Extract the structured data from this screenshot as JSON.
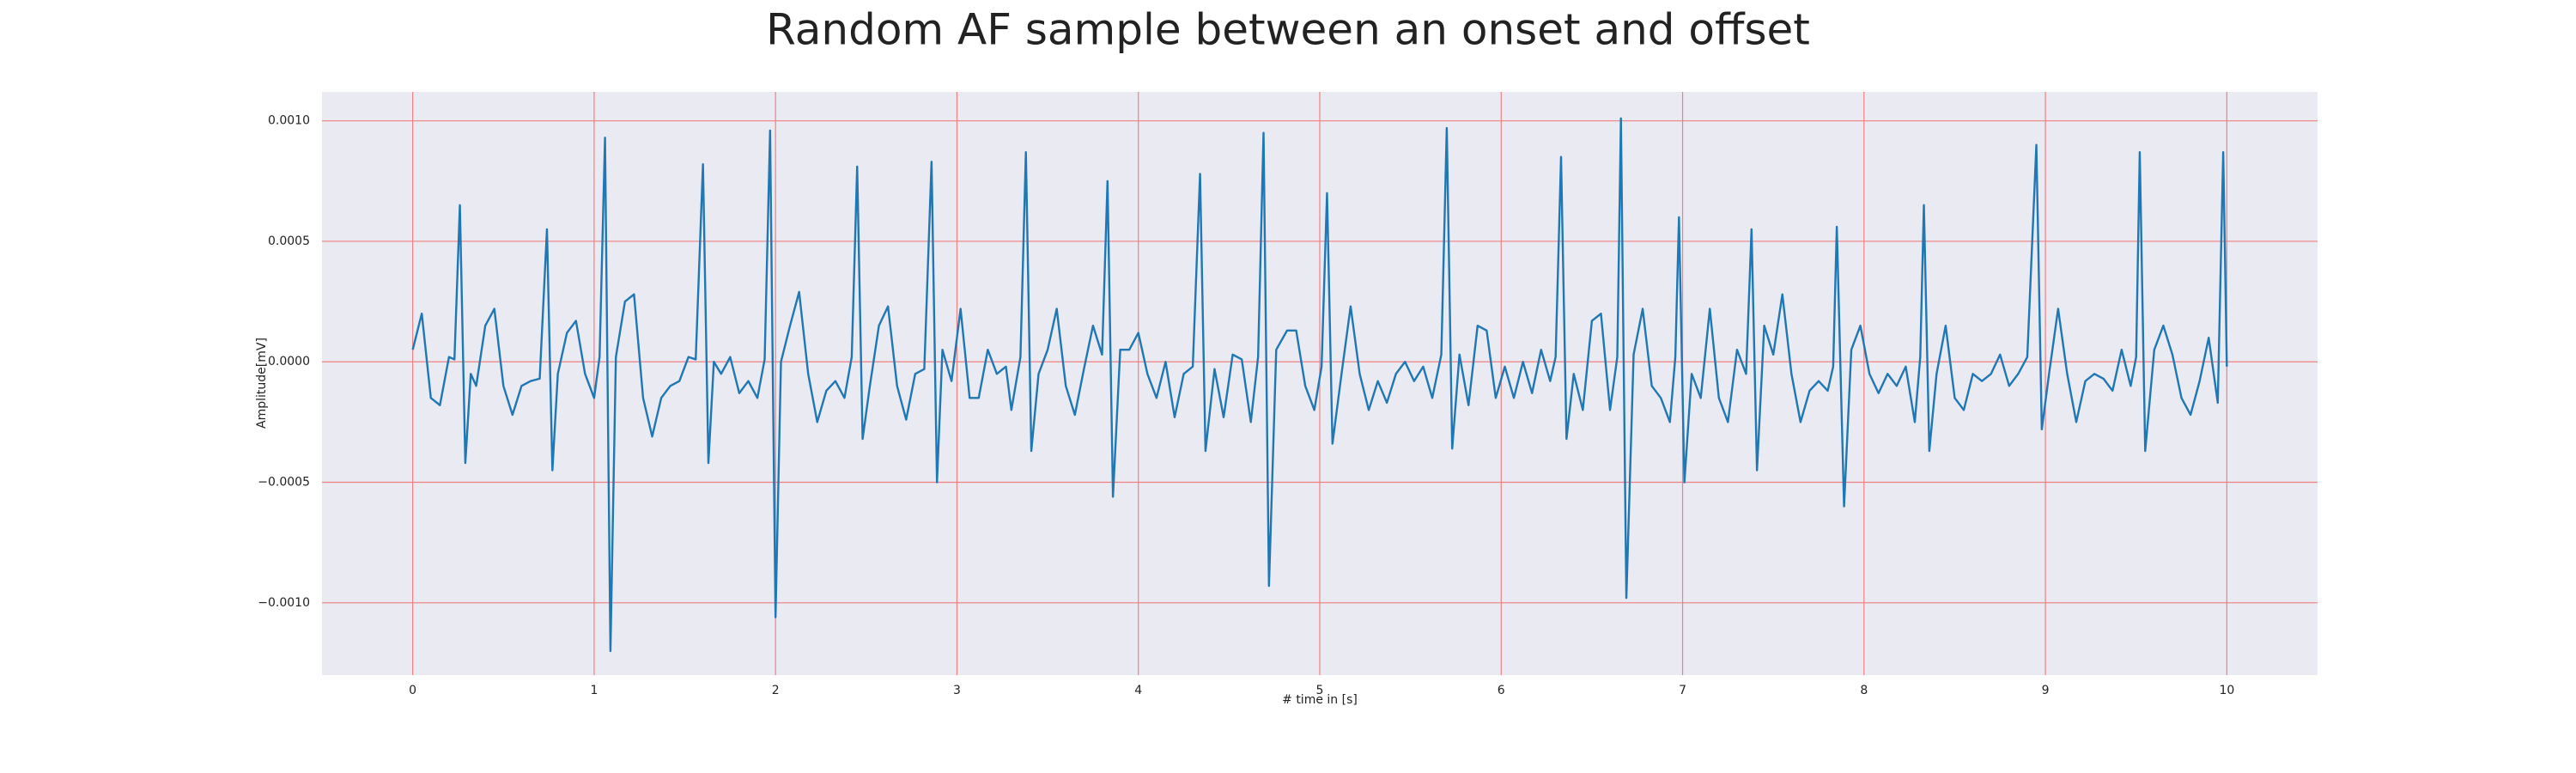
{
  "chart_data": {
    "type": "line",
    "title": "Random AF sample between an onset and offset",
    "x_label": "# time in [s]",
    "y_label": "Amplitude[mV]",
    "color": "#1f77b4",
    "grid": true,
    "x": [
      0,
      0.05,
      0.1,
      0.15,
      0.2,
      0.23,
      0.26,
      0.29,
      0.32,
      0.35,
      0.4,
      0.45,
      0.5,
      0.55,
      0.6,
      0.65,
      0.7,
      0.74,
      0.77,
      0.8,
      0.85,
      0.9,
      0.95,
      1.0,
      1.03,
      1.06,
      1.09,
      1.12,
      1.17,
      1.22,
      1.27,
      1.32,
      1.37,
      1.42,
      1.47,
      1.52,
      1.56,
      1.6,
      1.63,
      1.66,
      1.7,
      1.75,
      1.8,
      1.85,
      1.9,
      1.94,
      1.97,
      2.0,
      2.03,
      2.08,
      2.13,
      2.18,
      2.23,
      2.28,
      2.33,
      2.38,
      2.42,
      2.45,
      2.48,
      2.52,
      2.57,
      2.62,
      2.67,
      2.72,
      2.77,
      2.82,
      2.86,
      2.89,
      2.92,
      2.97,
      3.02,
      3.07,
      3.12,
      3.17,
      3.22,
      3.27,
      3.3,
      3.35,
      3.38,
      3.41,
      3.45,
      3.5,
      3.55,
      3.6,
      3.65,
      3.7,
      3.75,
      3.8,
      3.83,
      3.86,
      3.9,
      3.95,
      4.0,
      4.05,
      4.1,
      4.15,
      4.2,
      4.25,
      4.3,
      4.34,
      4.37,
      4.42,
      4.47,
      4.52,
      4.57,
      4.62,
      4.66,
      4.69,
      4.72,
      4.76,
      4.82,
      4.87,
      4.92,
      4.97,
      5.01,
      5.04,
      5.07,
      5.12,
      5.17,
      5.22,
      5.27,
      5.32,
      5.37,
      5.42,
      5.47,
      5.52,
      5.57,
      5.62,
      5.67,
      5.7,
      5.73,
      5.77,
      5.82,
      5.87,
      5.92,
      5.97,
      6.02,
      6.07,
      6.12,
      6.17,
      6.22,
      6.27,
      6.3,
      6.33,
      6.36,
      6.4,
      6.45,
      6.5,
      6.55,
      6.6,
      6.64,
      6.66,
      6.69,
      6.73,
      6.78,
      6.83,
      6.88,
      6.93,
      6.96,
      6.98,
      7.01,
      7.05,
      7.1,
      7.15,
      7.2,
      7.25,
      7.3,
      7.35,
      7.38,
      7.41,
      7.45,
      7.5,
      7.55,
      7.6,
      7.65,
      7.7,
      7.75,
      7.8,
      7.83,
      7.85,
      7.89,
      7.93,
      7.98,
      8.03,
      8.08,
      8.13,
      8.18,
      8.23,
      8.28,
      8.31,
      8.33,
      8.36,
      8.4,
      8.45,
      8.5,
      8.55,
      8.6,
      8.65,
      8.7,
      8.75,
      8.8,
      8.85,
      8.9,
      8.95,
      8.98,
      9.02,
      9.07,
      9.12,
      9.17,
      9.22,
      9.27,
      9.32,
      9.37,
      9.42,
      9.47,
      9.5,
      9.52,
      9.55,
      9.6,
      9.65,
      9.7,
      9.75,
      9.8,
      9.85,
      9.9,
      9.95,
      9.98,
      10.0
    ],
    "values": [
      5e-05,
      0.0002,
      -0.00015,
      -0.00018,
      2e-05,
      1e-05,
      0.00065,
      -0.00042,
      -5e-05,
      -0.0001,
      0.00015,
      0.00022,
      -0.0001,
      -0.00022,
      -0.0001,
      -8e-05,
      -7e-05,
      0.00055,
      -0.00045,
      -5e-05,
      0.00012,
      0.00017,
      -5e-05,
      -0.00015,
      2e-05,
      0.00093,
      -0.0012,
      2e-05,
      0.00025,
      0.00028,
      -0.00015,
      -0.00031,
      -0.00015,
      -0.0001,
      -8e-05,
      2e-05,
      1e-05,
      0.00082,
      -0.00042,
      0,
      -5e-05,
      2e-05,
      -0.00013,
      -8e-05,
      -0.00015,
      1e-05,
      0.00096,
      -0.00106,
      0,
      0.00015,
      0.00029,
      -5e-05,
      -0.00025,
      -0.00012,
      -8e-05,
      -0.00015,
      2e-05,
      0.00081,
      -0.00032,
      -0.0001,
      0.00015,
      0.00023,
      -0.0001,
      -0.00024,
      -5e-05,
      -3e-05,
      0.00083,
      -0.0005,
      5e-05,
      -8e-05,
      0.00022,
      -0.00015,
      -0.00015,
      5e-05,
      -5e-05,
      -2e-05,
      -0.0002,
      2e-05,
      0.00087,
      -0.00037,
      -5e-05,
      5e-05,
      0.00022,
      -0.0001,
      -0.00022,
      -3e-05,
      0.00015,
      3e-05,
      0.00075,
      -0.00056,
      5e-05,
      5e-05,
      0.00012,
      -5e-05,
      -0.00015,
      0,
      -0.00023,
      -5e-05,
      -2e-05,
      0.00078,
      -0.00037,
      -3e-05,
      -0.00023,
      3e-05,
      1e-05,
      -0.00025,
      2e-05,
      0.00095,
      -0.00093,
      5e-05,
      0.00013,
      0.00013,
      -0.0001,
      -0.0002,
      -2e-05,
      0.0007,
      -0.00034,
      -5e-05,
      0.00023,
      -5e-05,
      -0.0002,
      -8e-05,
      -0.00017,
      -5e-05,
      0,
      -8e-05,
      -2e-05,
      -0.00015,
      3e-05,
      0.00097,
      -0.00036,
      3e-05,
      -0.00018,
      0.00015,
      0.00013,
      -0.00015,
      -2e-05,
      -0.00015,
      0,
      -0.00013,
      5e-05,
      -8e-05,
      2e-05,
      0.00085,
      -0.00032,
      -5e-05,
      -0.0002,
      0.00017,
      0.0002,
      -0.0002,
      2e-05,
      0.00101,
      -0.00098,
      3e-05,
      0.00022,
      -0.0001,
      -0.00015,
      -0.00025,
      2e-05,
      0.0006,
      -0.0005,
      -5e-05,
      -0.00015,
      0.00022,
      -0.00015,
      -0.00025,
      5e-05,
      -5e-05,
      0.00055,
      -0.00045,
      0.00015,
      3e-05,
      0.00028,
      -5e-05,
      -0.00025,
      -0.00012,
      -8e-05,
      -0.00012,
      -2e-05,
      0.00056,
      -0.0006,
      5e-05,
      0.00015,
      -5e-05,
      -0.00013,
      -5e-05,
      -0.0001,
      -2e-05,
      -0.00025,
      2e-05,
      0.00065,
      -0.00037,
      -5e-05,
      0.00015,
      -0.00015,
      -0.0002,
      -5e-05,
      -8e-05,
      -5e-05,
      3e-05,
      -0.0001,
      -5e-05,
      2e-05,
      0.0009,
      -0.00028,
      -5e-05,
      0.00022,
      -5e-05,
      -0.00025,
      -8e-05,
      -5e-05,
      -7e-05,
      -0.00012,
      5e-05,
      -0.0001,
      2e-05,
      0.00087,
      -0.00037,
      5e-05,
      0.00015,
      3e-05,
      -0.00015,
      -0.00022,
      -8e-05,
      0.0001,
      -0.00017,
      0.00087,
      -2e-05
    ],
    "xlim": [
      -0.5,
      10.5
    ],
    "ylim": [
      -0.0013,
      0.00112
    ],
    "xticks": [
      0,
      1,
      2,
      3,
      4,
      5,
      6,
      7,
      8,
      9,
      10
    ],
    "yticks": [
      {
        "value": 0.001,
        "label": "0.0010"
      },
      {
        "value": 0.0005,
        "label": "0.0005"
      },
      {
        "value": 0,
        "label": "0.0000"
      },
      {
        "value": -0.0005,
        "label": "−0.0005"
      },
      {
        "value": -0.001,
        "label": "−0.0010"
      }
    ]
  }
}
